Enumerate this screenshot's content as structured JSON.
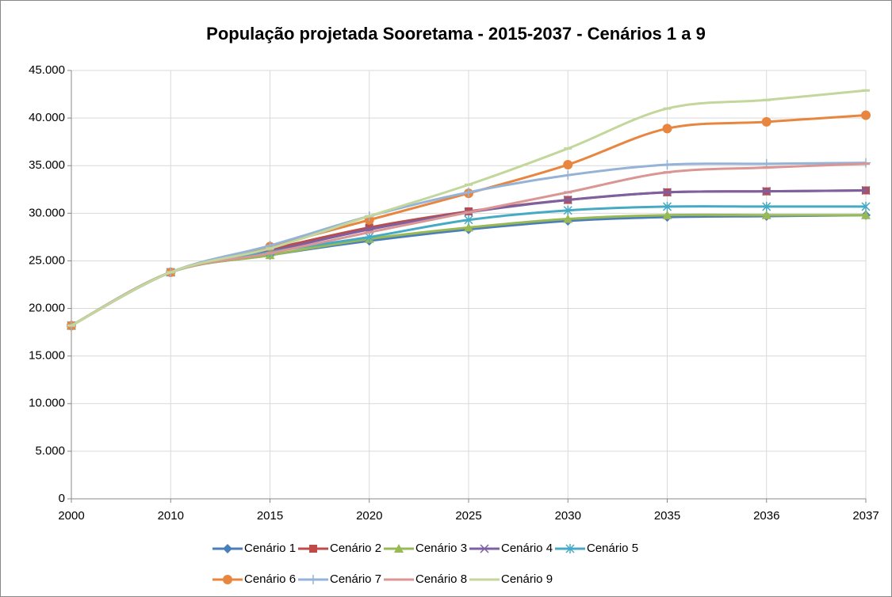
{
  "chart_data": {
    "type": "line",
    "title": "População projetada Sooretama - 2015-2037 - Cenários 1 a 9",
    "categories": [
      "2000",
      "2010",
      "2015",
      "2020",
      "2025",
      "2030",
      "2035",
      "2036",
      "2037"
    ],
    "ylim": [
      0,
      45000
    ],
    "yticks": [
      0,
      {
        "value": 5000,
        "label": "5.000"
      },
      {
        "value": 10000,
        "label": "10.000"
      },
      {
        "value": 15000,
        "label": "15.000"
      },
      {
        "value": 20000,
        "label": "20.000"
      },
      {
        "value": 25000,
        "label": "25.000"
      },
      {
        "value": 30000,
        "label": "30.000"
      },
      {
        "value": 35000,
        "label": "35.000"
      },
      {
        "value": 40000,
        "label": "40.000"
      },
      {
        "value": 45000,
        "label": "45.000"
      }
    ],
    "grid": true,
    "smooth": true,
    "legend": "bottom",
    "series": [
      {
        "name": "Cenário 1",
        "color": "#4a7ebb",
        "marker": "diamond",
        "values": [
          18200,
          23800,
          25600,
          27100,
          28300,
          29200,
          29600,
          29700,
          29800
        ]
      },
      {
        "name": "Cenário 2",
        "color": "#be4b48",
        "marker": "square",
        "values": [
          18200,
          23800,
          26200,
          28500,
          30200,
          31400,
          32200,
          32300,
          32400
        ]
      },
      {
        "name": "Cenário 3",
        "color": "#98b954",
        "marker": "triangle",
        "values": [
          18200,
          23800,
          25600,
          27300,
          28500,
          29400,
          29800,
          29800,
          29800
        ]
      },
      {
        "name": "Cenário 4",
        "color": "#7d60a0",
        "marker": "x",
        "values": [
          18200,
          23800,
          26000,
          28300,
          30100,
          31400,
          32200,
          32300,
          32400
        ]
      },
      {
        "name": "Cenário 5",
        "color": "#46aac5",
        "marker": "star",
        "values": [
          18200,
          23800,
          25900,
          27500,
          29300,
          30300,
          30700,
          30700,
          30700
        ]
      },
      {
        "name": "Cenário 6",
        "color": "#e8853f",
        "marker": "circle",
        "values": [
          18200,
          23800,
          26500,
          29300,
          32100,
          35100,
          38900,
          39600,
          40300
        ]
      },
      {
        "name": "Cenário 7",
        "color": "#95b3d7",
        "marker": "plus",
        "values": [
          18200,
          23800,
          26600,
          29700,
          32200,
          34000,
          35100,
          35200,
          35300
        ]
      },
      {
        "name": "Cenário 8",
        "color": "#d99694",
        "marker": "dash",
        "values": [
          18200,
          23800,
          25800,
          28000,
          30100,
          32200,
          34300,
          34800,
          35200
        ]
      },
      {
        "name": "Cenário 9",
        "color": "#c3d69b",
        "marker": "dash",
        "values": [
          18200,
          23800,
          26300,
          29700,
          33000,
          36800,
          41000,
          41900,
          42900
        ]
      }
    ]
  }
}
